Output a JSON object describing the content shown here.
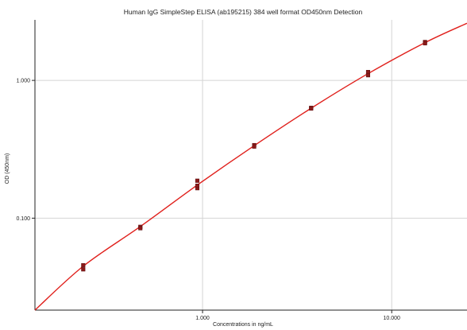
{
  "chart_data": {
    "type": "scatter",
    "title": "Human IgG SimpleStep ELISA (ab195215) 384 well format OD450nm Detection",
    "xlabel": "Concentrations in ng/mL",
    "ylabel": "OD (450nm)",
    "x_scale": "log",
    "y_scale": "log",
    "xlim": [
      0.13,
      25
    ],
    "ylim": [
      0.0215,
      2.75
    ],
    "x_ticks": [
      {
        "value": 1,
        "label": "1.000"
      },
      {
        "value": 10,
        "label": "10.000"
      }
    ],
    "y_ticks": [
      {
        "value": 0.1,
        "label": "0.100"
      },
      {
        "value": 1,
        "label": "1.000"
      }
    ],
    "grid": true,
    "colors": {
      "points": "#8b1a1a",
      "fit": "#e0201c",
      "grid": "#d4d4d4",
      "axis": "#222222"
    },
    "series": [
      {
        "type": "scatter",
        "points": [
          {
            "x": 0.234,
            "y": 0.0455
          },
          {
            "x": 0.234,
            "y": 0.0425
          },
          {
            "x": 0.469,
            "y": 0.0865
          },
          {
            "x": 0.469,
            "y": 0.0845
          },
          {
            "x": 0.938,
            "y": 0.187
          },
          {
            "x": 0.938,
            "y": 0.165
          },
          {
            "x": 0.938,
            "y": 0.172
          },
          {
            "x": 1.875,
            "y": 0.339
          },
          {
            "x": 1.875,
            "y": 0.331
          },
          {
            "x": 3.75,
            "y": 0.632
          },
          {
            "x": 3.75,
            "y": 0.625
          },
          {
            "x": 7.5,
            "y": 1.15
          },
          {
            "x": 7.5,
            "y": 1.09
          },
          {
            "x": 15,
            "y": 1.9
          },
          {
            "x": 15,
            "y": 1.86
          }
        ]
      },
      {
        "type": "line",
        "points": [
          {
            "x": 0.13,
            "y": 0.0215
          },
          {
            "x": 0.234,
            "y": 0.0448
          },
          {
            "x": 0.469,
            "y": 0.087
          },
          {
            "x": 0.938,
            "y": 0.174
          },
          {
            "x": 1.875,
            "y": 0.336
          },
          {
            "x": 3.75,
            "y": 0.628
          },
          {
            "x": 7.5,
            "y": 1.12
          },
          {
            "x": 15,
            "y": 1.88
          },
          {
            "x": 25,
            "y": 2.6
          }
        ]
      }
    ]
  }
}
